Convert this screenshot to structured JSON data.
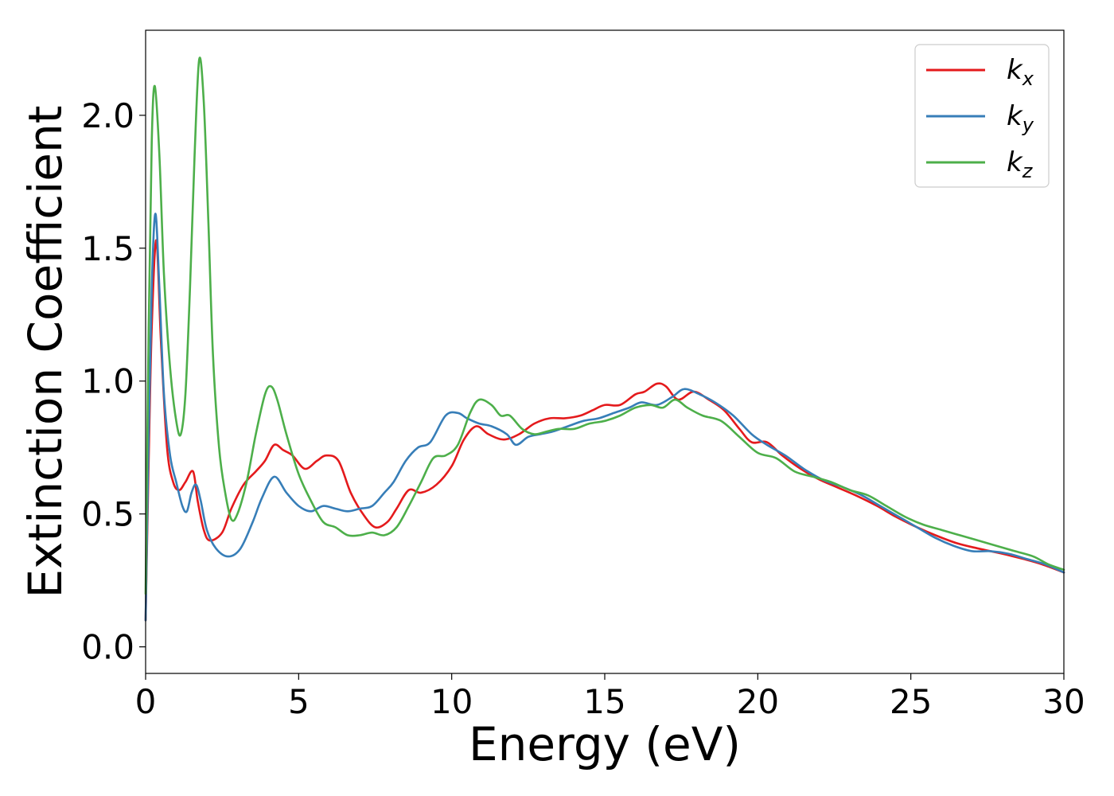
{
  "chart_data": {
    "type": "line",
    "xlabel": "Energy (eV)",
    "ylabel": "Extinction Coefficient",
    "xlim": [
      0,
      30
    ],
    "ylim": [
      -0.1,
      2.32
    ],
    "xticks": [
      0,
      5,
      10,
      15,
      20,
      25,
      30
    ],
    "xtick_labels": [
      "0",
      "5",
      "10",
      "15",
      "20",
      "25",
      "30"
    ],
    "yticks": [
      0.0,
      0.5,
      1.0,
      1.5,
      2.0
    ],
    "ytick_labels": [
      "0.0",
      "0.5",
      "1.0",
      "1.5",
      "2.0"
    ],
    "grid": false,
    "legend_position": "top-right",
    "series": [
      {
        "name": "k_x",
        "label_main": "k",
        "label_sub": "x",
        "color": "#e41a1c",
        "x": [
          0,
          0.1,
          0.2,
          0.35,
          0.5,
          0.7,
          0.9,
          1.1,
          1.3,
          1.55,
          1.7,
          1.9,
          2.1,
          2.5,
          2.8,
          3.2,
          3.6,
          3.9,
          4.2,
          4.5,
          4.8,
          5.2,
          5.6,
          5.9,
          6.3,
          6.7,
          7.1,
          7.5,
          7.9,
          8.2,
          8.6,
          9.0,
          9.5,
          10.0,
          10.4,
          10.8,
          11.2,
          11.7,
          12.2,
          12.7,
          13.2,
          13.7,
          14.2,
          14.6,
          15.0,
          15.5,
          16.0,
          16.3,
          16.7,
          17.0,
          17.4,
          17.9,
          18.4,
          18.9,
          19.4,
          19.8,
          20.3,
          20.8,
          21.4,
          22.0,
          22.6,
          23.2,
          23.9,
          24.5,
          25.2,
          25.8,
          26.5,
          27.2,
          28.0,
          28.7,
          29.3,
          30.0
        ],
        "y": [
          0.1,
          0.7,
          1.2,
          1.53,
          1.15,
          0.75,
          0.62,
          0.59,
          0.62,
          0.66,
          0.55,
          0.44,
          0.4,
          0.43,
          0.52,
          0.61,
          0.66,
          0.7,
          0.76,
          0.74,
          0.72,
          0.67,
          0.7,
          0.72,
          0.7,
          0.58,
          0.5,
          0.45,
          0.47,
          0.52,
          0.59,
          0.58,
          0.61,
          0.68,
          0.78,
          0.83,
          0.8,
          0.78,
          0.8,
          0.84,
          0.86,
          0.86,
          0.87,
          0.89,
          0.91,
          0.91,
          0.95,
          0.96,
          0.99,
          0.98,
          0.93,
          0.96,
          0.93,
          0.89,
          0.82,
          0.77,
          0.77,
          0.72,
          0.67,
          0.63,
          0.6,
          0.57,
          0.53,
          0.49,
          0.45,
          0.42,
          0.39,
          0.37,
          0.35,
          0.33,
          0.31,
          0.28
        ]
      },
      {
        "name": "k_y",
        "label_main": "k",
        "label_sub": "y",
        "color": "#377eb8",
        "x": [
          0,
          0.1,
          0.2,
          0.32,
          0.45,
          0.6,
          0.8,
          1.0,
          1.2,
          1.35,
          1.5,
          1.65,
          1.8,
          2.0,
          2.3,
          2.7,
          3.1,
          3.5,
          3.8,
          4.2,
          4.6,
          5.0,
          5.4,
          5.8,
          6.2,
          6.6,
          7.0,
          7.4,
          7.8,
          8.1,
          8.5,
          8.9,
          9.3,
          9.8,
          10.2,
          10.5,
          10.9,
          11.3,
          11.8,
          12.1,
          12.5,
          12.9,
          13.3,
          13.8,
          14.3,
          14.8,
          15.3,
          15.8,
          16.2,
          16.7,
          17.2,
          17.6,
          18.1,
          18.6,
          19.2,
          19.8,
          20.3,
          20.9,
          21.5,
          22.1,
          22.8,
          23.4,
          24.0,
          24.6,
          25.2,
          25.8,
          26.4,
          27.0,
          27.6,
          28.2,
          28.8,
          29.4,
          30.0
        ],
        "y": [
          0.1,
          0.8,
          1.35,
          1.63,
          1.35,
          0.95,
          0.72,
          0.62,
          0.53,
          0.51,
          0.58,
          0.61,
          0.55,
          0.44,
          0.37,
          0.34,
          0.37,
          0.47,
          0.56,
          0.64,
          0.58,
          0.53,
          0.51,
          0.53,
          0.52,
          0.51,
          0.52,
          0.53,
          0.58,
          0.62,
          0.7,
          0.75,
          0.77,
          0.87,
          0.88,
          0.86,
          0.84,
          0.83,
          0.8,
          0.76,
          0.79,
          0.8,
          0.81,
          0.83,
          0.85,
          0.86,
          0.88,
          0.9,
          0.92,
          0.91,
          0.94,
          0.97,
          0.95,
          0.92,
          0.87,
          0.8,
          0.76,
          0.72,
          0.67,
          0.63,
          0.6,
          0.57,
          0.53,
          0.49,
          0.45,
          0.41,
          0.38,
          0.36,
          0.36,
          0.35,
          0.33,
          0.31,
          0.28
        ]
      },
      {
        "name": "k_z",
        "label_main": "k",
        "label_sub": "z",
        "color": "#4daf4a",
        "x": [
          0,
          0.1,
          0.2,
          0.3,
          0.45,
          0.6,
          0.8,
          1.0,
          1.15,
          1.3,
          1.45,
          1.6,
          1.75,
          1.9,
          2.05,
          2.2,
          2.4,
          2.6,
          2.8,
          3.0,
          3.3,
          3.6,
          3.9,
          4.1,
          4.3,
          4.6,
          5.0,
          5.4,
          5.8,
          6.2,
          6.6,
          7.0,
          7.4,
          7.8,
          8.2,
          8.6,
          9.0,
          9.4,
          9.8,
          10.2,
          10.6,
          10.9,
          11.3,
          11.6,
          11.9,
          12.3,
          12.7,
          13.1,
          13.5,
          14.0,
          14.5,
          15.0,
          15.5,
          16.0,
          16.5,
          16.9,
          17.3,
          17.7,
          18.2,
          18.8,
          19.4,
          20.0,
          20.6,
          21.2,
          21.8,
          22.4,
          23.0,
          23.6,
          24.2,
          24.8,
          25.4,
          26.0,
          26.6,
          27.2,
          27.8,
          28.4,
          29.0,
          29.5,
          30.0
        ],
        "y": [
          0.2,
          1.2,
          1.9,
          2.11,
          1.85,
          1.4,
          1.05,
          0.85,
          0.8,
          0.95,
          1.35,
          1.85,
          2.21,
          2.05,
          1.6,
          1.1,
          0.75,
          0.58,
          0.48,
          0.5,
          0.62,
          0.8,
          0.95,
          0.98,
          0.93,
          0.8,
          0.65,
          0.55,
          0.47,
          0.45,
          0.42,
          0.42,
          0.43,
          0.42,
          0.45,
          0.53,
          0.62,
          0.71,
          0.72,
          0.76,
          0.88,
          0.93,
          0.91,
          0.87,
          0.87,
          0.82,
          0.8,
          0.81,
          0.82,
          0.82,
          0.84,
          0.85,
          0.87,
          0.9,
          0.91,
          0.9,
          0.93,
          0.9,
          0.87,
          0.85,
          0.79,
          0.73,
          0.71,
          0.66,
          0.64,
          0.62,
          0.59,
          0.57,
          0.53,
          0.49,
          0.46,
          0.44,
          0.42,
          0.4,
          0.38,
          0.36,
          0.34,
          0.31,
          0.29
        ]
      }
    ]
  }
}
